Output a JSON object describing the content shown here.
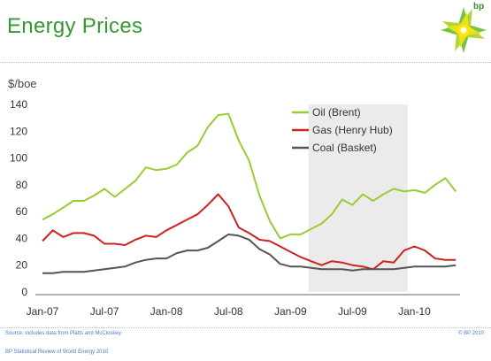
{
  "title": "Energy Prices",
  "logo_text": "bp",
  "source": "Source: includes data from Platts and McCloskey.",
  "copyright": "© BP 2010",
  "footer": "BP Statistical Review of World Energy 2010",
  "colors": {
    "oil": "#99cc33",
    "gas": "#cc2222",
    "coal": "#555555",
    "title": "#339933",
    "shade": "#ebebeb"
  },
  "chart_data": {
    "type": "line",
    "ylabel": "$/boe",
    "ylim": [
      0,
      140
    ],
    "yticks": [
      0,
      20,
      40,
      60,
      80,
      100,
      120,
      140
    ],
    "xtick_labels": [
      "Jan-07",
      "Jul-07",
      "Jan-08",
      "Jul-08",
      "Jan-09",
      "Jul-09",
      "Jan-10"
    ],
    "grid": false,
    "legend": "top-right",
    "shaded_period": [
      "Mar-09",
      "Dec-09"
    ],
    "x": [
      "Jan-07",
      "Feb-07",
      "Mar-07",
      "Apr-07",
      "May-07",
      "Jun-07",
      "Jul-07",
      "Aug-07",
      "Sep-07",
      "Oct-07",
      "Nov-07",
      "Dec-07",
      "Jan-08",
      "Feb-08",
      "Mar-08",
      "Apr-08",
      "May-08",
      "Jun-08",
      "Jul-08",
      "Aug-08",
      "Sep-08",
      "Oct-08",
      "Nov-08",
      "Dec-08",
      "Jan-09",
      "Feb-09",
      "Mar-09",
      "Apr-09",
      "May-09",
      "Jun-09",
      "Jul-09",
      "Aug-09",
      "Sep-09",
      "Oct-09",
      "Nov-09",
      "Dec-09",
      "Jan-10",
      "Feb-10",
      "Mar-10",
      "Apr-10",
      "May-10"
    ],
    "series": [
      {
        "name": "Oil (Brent)",
        "values": [
          54,
          58,
          63,
          68,
          68,
          72,
          77,
          71,
          77,
          83,
          93,
          91,
          92,
          95,
          104,
          109,
          123,
          132,
          133,
          113,
          98,
          72,
          53,
          40,
          43,
          43,
          47,
          51,
          58,
          69,
          65,
          73,
          68,
          73,
          77,
          75,
          76,
          74,
          80,
          85,
          75
        ]
      },
      {
        "name": "Gas (Henry Hub)",
        "values": [
          38,
          46,
          41,
          44,
          44,
          42,
          36,
          36,
          35,
          39,
          42,
          41,
          46,
          50,
          54,
          58,
          65,
          73,
          64,
          48,
          44,
          39,
          38,
          34,
          30,
          26,
          23,
          20,
          23,
          22,
          20,
          19,
          17,
          23,
          22,
          31,
          34,
          31,
          25,
          24,
          24
        ]
      },
      {
        "name": "Coal (Basket)",
        "values": [
          14,
          14,
          15,
          15,
          15,
          16,
          17,
          18,
          19,
          22,
          24,
          25,
          25,
          29,
          31,
          31,
          33,
          38,
          43,
          42,
          39,
          32,
          28,
          21,
          19,
          19,
          18,
          17,
          17,
          17,
          16,
          17,
          17,
          17,
          17,
          18,
          19,
          19,
          19,
          19,
          20
        ]
      }
    ]
  }
}
